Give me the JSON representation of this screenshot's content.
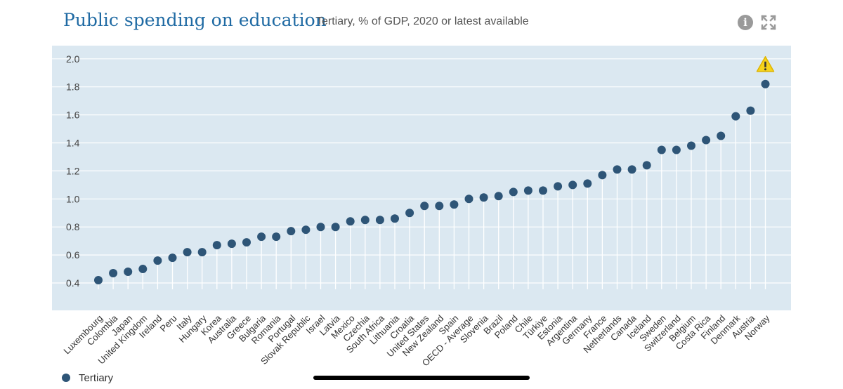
{
  "header": {
    "title": "Public spending on education",
    "subtitle": "Tertiary, % of GDP, 2020 or latest available"
  },
  "icons": {
    "info": "info-icon",
    "expand": "expand-icon",
    "warning": "warning-icon"
  },
  "colors": {
    "plot_bg": "#dbe8f1",
    "grid": "#ffffff",
    "marker": "#2e5577",
    "title": "#1f6aa3",
    "warning": "#f5d31b"
  },
  "legend": {
    "label": "Tertiary"
  },
  "chart_data": {
    "type": "scatter",
    "title": "Public spending on education",
    "subtitle": "Tertiary, % of GDP, 2020 or latest available",
    "xlabel": "",
    "ylabel": "",
    "ylim": [
      0.3,
      2.1
    ],
    "yticks": [
      0.4,
      0.6,
      0.8,
      1.0,
      1.2,
      1.4,
      1.6,
      1.8,
      2.0
    ],
    "ytick_labels": [
      "0.4",
      "0.6",
      "0.8",
      "1.0",
      "1.2",
      "1.4",
      "1.6",
      "1.8",
      "2.0"
    ],
    "grid": true,
    "legend_position": "bottom-left",
    "categories": [
      "Luxembourg",
      "Colombia",
      "Japan",
      "United Kingdom",
      "Ireland",
      "Peru",
      "Italy",
      "Hungary",
      "Korea",
      "Australia",
      "Greece",
      "Bulgaria",
      "Romania",
      "Portugal",
      "Slovak Republic",
      "Israel",
      "Latvia",
      "Mexico",
      "Czechia",
      "South Africa",
      "Lithuania",
      "Croatia",
      "United States",
      "New Zealand",
      "Spain",
      "OECD - Average",
      "Slovenia",
      "Brazil",
      "Poland",
      "Chile",
      "Türkiye",
      "Estonia",
      "Argentina",
      "Germany",
      "France",
      "Netherlands",
      "Canada",
      "Iceland",
      "Sweden",
      "Switzerland",
      "Belgium",
      "Costa Rica",
      "Finland",
      "Denmark",
      "Austria",
      "Norway"
    ],
    "series": [
      {
        "name": "Tertiary",
        "values": [
          0.42,
          0.47,
          0.48,
          0.5,
          0.56,
          0.58,
          0.62,
          0.62,
          0.67,
          0.68,
          0.69,
          0.73,
          0.73,
          0.77,
          0.78,
          0.8,
          0.8,
          0.84,
          0.85,
          0.85,
          0.86,
          0.9,
          0.95,
          0.95,
          0.96,
          1.0,
          1.01,
          1.02,
          1.05,
          1.06,
          1.06,
          1.09,
          1.1,
          1.11,
          1.17,
          1.21,
          1.21,
          1.24,
          1.35,
          1.35,
          1.38,
          1.42,
          1.45,
          1.59,
          1.63,
          1.82
        ]
      }
    ],
    "annotations": [
      {
        "category": "Norway",
        "type": "warning-icon"
      }
    ]
  }
}
